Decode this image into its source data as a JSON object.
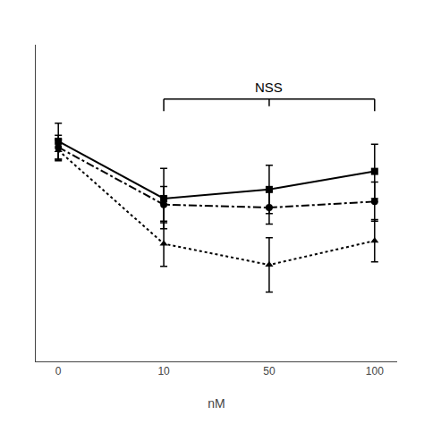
{
  "chart_data": {
    "type": "line",
    "categories": [
      "0",
      "10",
      "50",
      "100"
    ],
    "series": [
      {
        "values": [
          0.83,
          0.64,
          0.67,
          0.73
        ],
        "errors": [
          0.06,
          0.1,
          0.08,
          0.09
        ],
        "color": "#000000",
        "marker": "square",
        "line_style": "solid"
      },
      {
        "values": [
          0.81,
          0.62,
          0.61,
          0.63
        ],
        "errors": [
          0.04,
          0.06,
          0.055,
          0.065
        ],
        "color": "#000000",
        "marker": "circle",
        "line_style": "dashdot"
      },
      {
        "values": [
          0.8,
          0.49,
          0.42,
          0.5
        ],
        "errors": [
          0.035,
          0.075,
          0.09,
          0.07
        ],
        "color": "#000000",
        "marker": "triangle-up",
        "line_style": "dot"
      }
    ],
    "xlabel": "nM",
    "ylim": [
      0.1,
      1.15
    ],
    "yticks": [],
    "tick_labels": "x",
    "grid": false,
    "annotations": [
      {
        "text": "NSS",
        "x_start": "10",
        "x_end": "100",
        "y": 0.97,
        "tick_down": 0.04
      }
    ]
  }
}
